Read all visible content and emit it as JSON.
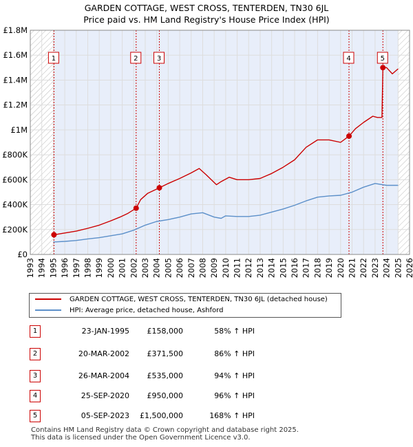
{
  "chart_data": {
    "type": "line",
    "title": "GARDEN COTTAGE, WEST CROSS, TENTERDEN, TN30 6JL",
    "subtitle": "Price paid vs. HM Land Registry's House Price Index (HPI)",
    "xlim": [
      1993,
      2026
    ],
    "ylim": [
      0,
      1800000
    ],
    "y_ticks": [
      0,
      200000,
      400000,
      600000,
      800000,
      1000000,
      1200000,
      1400000,
      1600000,
      1800000
    ],
    "y_tick_labels": [
      "£0",
      "£200K",
      "£400K",
      "£600K",
      "£800K",
      "£1M",
      "£1.2M",
      "£1.4M",
      "£1.6M",
      "£1.8M"
    ],
    "x_ticks": [
      1993,
      1994,
      1995,
      1996,
      1997,
      1998,
      1999,
      2000,
      2001,
      2002,
      2003,
      2004,
      2005,
      2006,
      2007,
      2008,
      2009,
      2010,
      2011,
      2012,
      2013,
      2014,
      2015,
      2016,
      2017,
      2018,
      2019,
      2020,
      2021,
      2022,
      2023,
      2024,
      2025,
      2026
    ],
    "hatched_before": 1995.06,
    "hatched_after": 2025.0,
    "series": [
      {
        "name": "GARDEN COTTAGE, WEST CROSS, TENTERDEN, TN30 6JL (detached house)",
        "color": "#cc0000",
        "x": [
          1995.06,
          1996,
          1997,
          1998,
          1999,
          2000,
          2000.8,
          2001.5,
          2002.21,
          2002.6,
          2003.2,
          2004.23,
          2005,
          2006,
          2007,
          2007.7,
          2008.3,
          2009.2,
          2009.6,
          2010.3,
          2011,
          2012,
          2013,
          2014,
          2015,
          2016,
          2017,
          2018,
          2019,
          2020,
          2020.73,
          2021.3,
          2022,
          2022.8,
          2023.2,
          2023.6,
          2023.68,
          2024,
          2024.5,
          2025
        ],
        "y": [
          158000,
          172000,
          187000,
          210000,
          235000,
          270000,
          300000,
          330000,
          371500,
          440000,
          490000,
          535000,
          570000,
          610000,
          655000,
          690000,
          640000,
          560000,
          585000,
          620000,
          600000,
          600000,
          610000,
          650000,
          700000,
          760000,
          860000,
          920000,
          920000,
          900000,
          950000,
          1010000,
          1060000,
          1110000,
          1100000,
          1100000,
          1500000,
          1500000,
          1450000,
          1490000
        ]
      },
      {
        "name": "HPI: Average price, detached house, Ashford",
        "color": "#5b8fc9",
        "x": [
          1995,
          1996,
          1997,
          1998,
          1999,
          2000,
          2001,
          2002,
          2003,
          2004,
          2005,
          2006,
          2007,
          2008,
          2009,
          2009.6,
          2010,
          2011,
          2012,
          2013,
          2014,
          2015,
          2016,
          2017,
          2018,
          2019,
          2020,
          2021,
          2022,
          2023,
          2024,
          2025
        ],
        "y": [
          100000,
          105000,
          112000,
          125000,
          135000,
          150000,
          165000,
          195000,
          235000,
          265000,
          280000,
          300000,
          325000,
          335000,
          300000,
          290000,
          310000,
          305000,
          305000,
          315000,
          340000,
          365000,
          395000,
          430000,
          460000,
          470000,
          475000,
          500000,
          540000,
          570000,
          555000,
          555000
        ]
      }
    ],
    "sale_markers": [
      {
        "n": "1",
        "x": 1995.06,
        "y": 158000
      },
      {
        "n": "2",
        "x": 2002.21,
        "y": 371500
      },
      {
        "n": "3",
        "x": 2004.23,
        "y": 535000
      },
      {
        "n": "4",
        "x": 2020.73,
        "y": 950000
      },
      {
        "n": "5",
        "x": 2023.68,
        "y": 1500000
      }
    ]
  },
  "legend": {
    "property": "GARDEN COTTAGE, WEST CROSS, TENTERDEN, TN30 6JL (detached house)",
    "hpi": "HPI: Average price, detached house, Ashford"
  },
  "sales": [
    {
      "n": "1",
      "date": "23-JAN-1995",
      "price": "£158,000",
      "hpi": "58% ↑ HPI"
    },
    {
      "n": "2",
      "date": "20-MAR-2002",
      "price": "£371,500",
      "hpi": "86% ↑ HPI"
    },
    {
      "n": "3",
      "date": "26-MAR-2004",
      "price": "£535,000",
      "hpi": "94% ↑ HPI"
    },
    {
      "n": "4",
      "date": "25-SEP-2020",
      "price": "£950,000",
      "hpi": "96% ↑ HPI"
    },
    {
      "n": "5",
      "date": "05-SEP-2023",
      "price": "£1,500,000",
      "hpi": "168% ↑ HPI"
    }
  ],
  "footer": {
    "line1": "Contains HM Land Registry data © Crown copyright and database right 2025.",
    "line2": "This data is licensed under the Open Government Licence v3.0."
  },
  "colors": {
    "property": "#cc0000",
    "hpi": "#5b8fc9",
    "shade": "#e8eefa",
    "marker_box": "#cc0000"
  }
}
